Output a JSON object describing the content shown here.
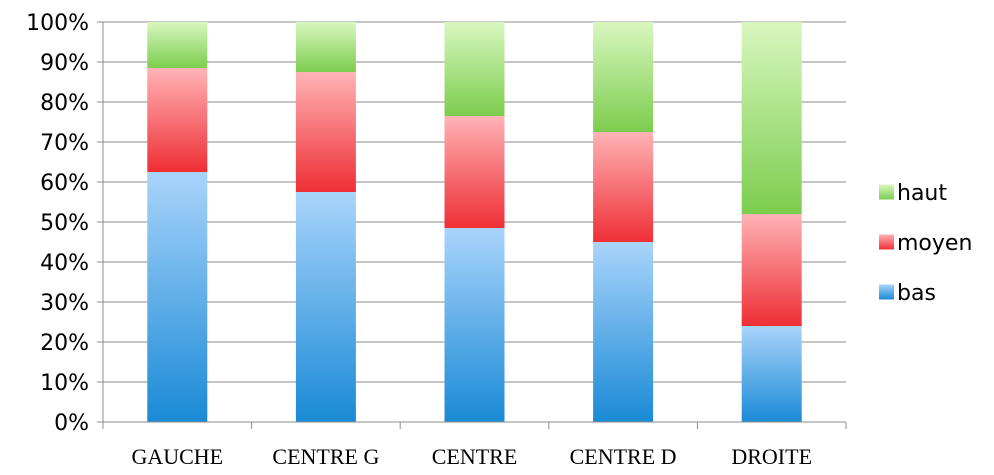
{
  "chart_data": {
    "type": "bar",
    "stacked": true,
    "normalized_percent": true,
    "categories": [
      "GAUCHE",
      "CENTRE G",
      "CENTRE",
      "CENTRE D",
      "DROITE"
    ],
    "series": [
      {
        "name": "bas",
        "values": [
          62.5,
          57.5,
          48.5,
          45.0,
          24.0
        ],
        "color": "#4a9fe0"
      },
      {
        "name": "moyen",
        "values": [
          26.0,
          30.0,
          28.0,
          27.5,
          28.0
        ],
        "color": "#f15a5f"
      },
      {
        "name": "haut",
        "values": [
          11.5,
          12.5,
          23.5,
          27.5,
          48.0
        ],
        "color": "#8fd66a"
      }
    ],
    "ylim": [
      0,
      100
    ],
    "yticks": [
      "0%",
      "10%",
      "20%",
      "30%",
      "40%",
      "50%",
      "60%",
      "70%",
      "80%",
      "90%",
      "100%"
    ],
    "grid": true,
    "legend_position": "right",
    "legend_order": [
      "haut",
      "moyen",
      "bas"
    ]
  }
}
